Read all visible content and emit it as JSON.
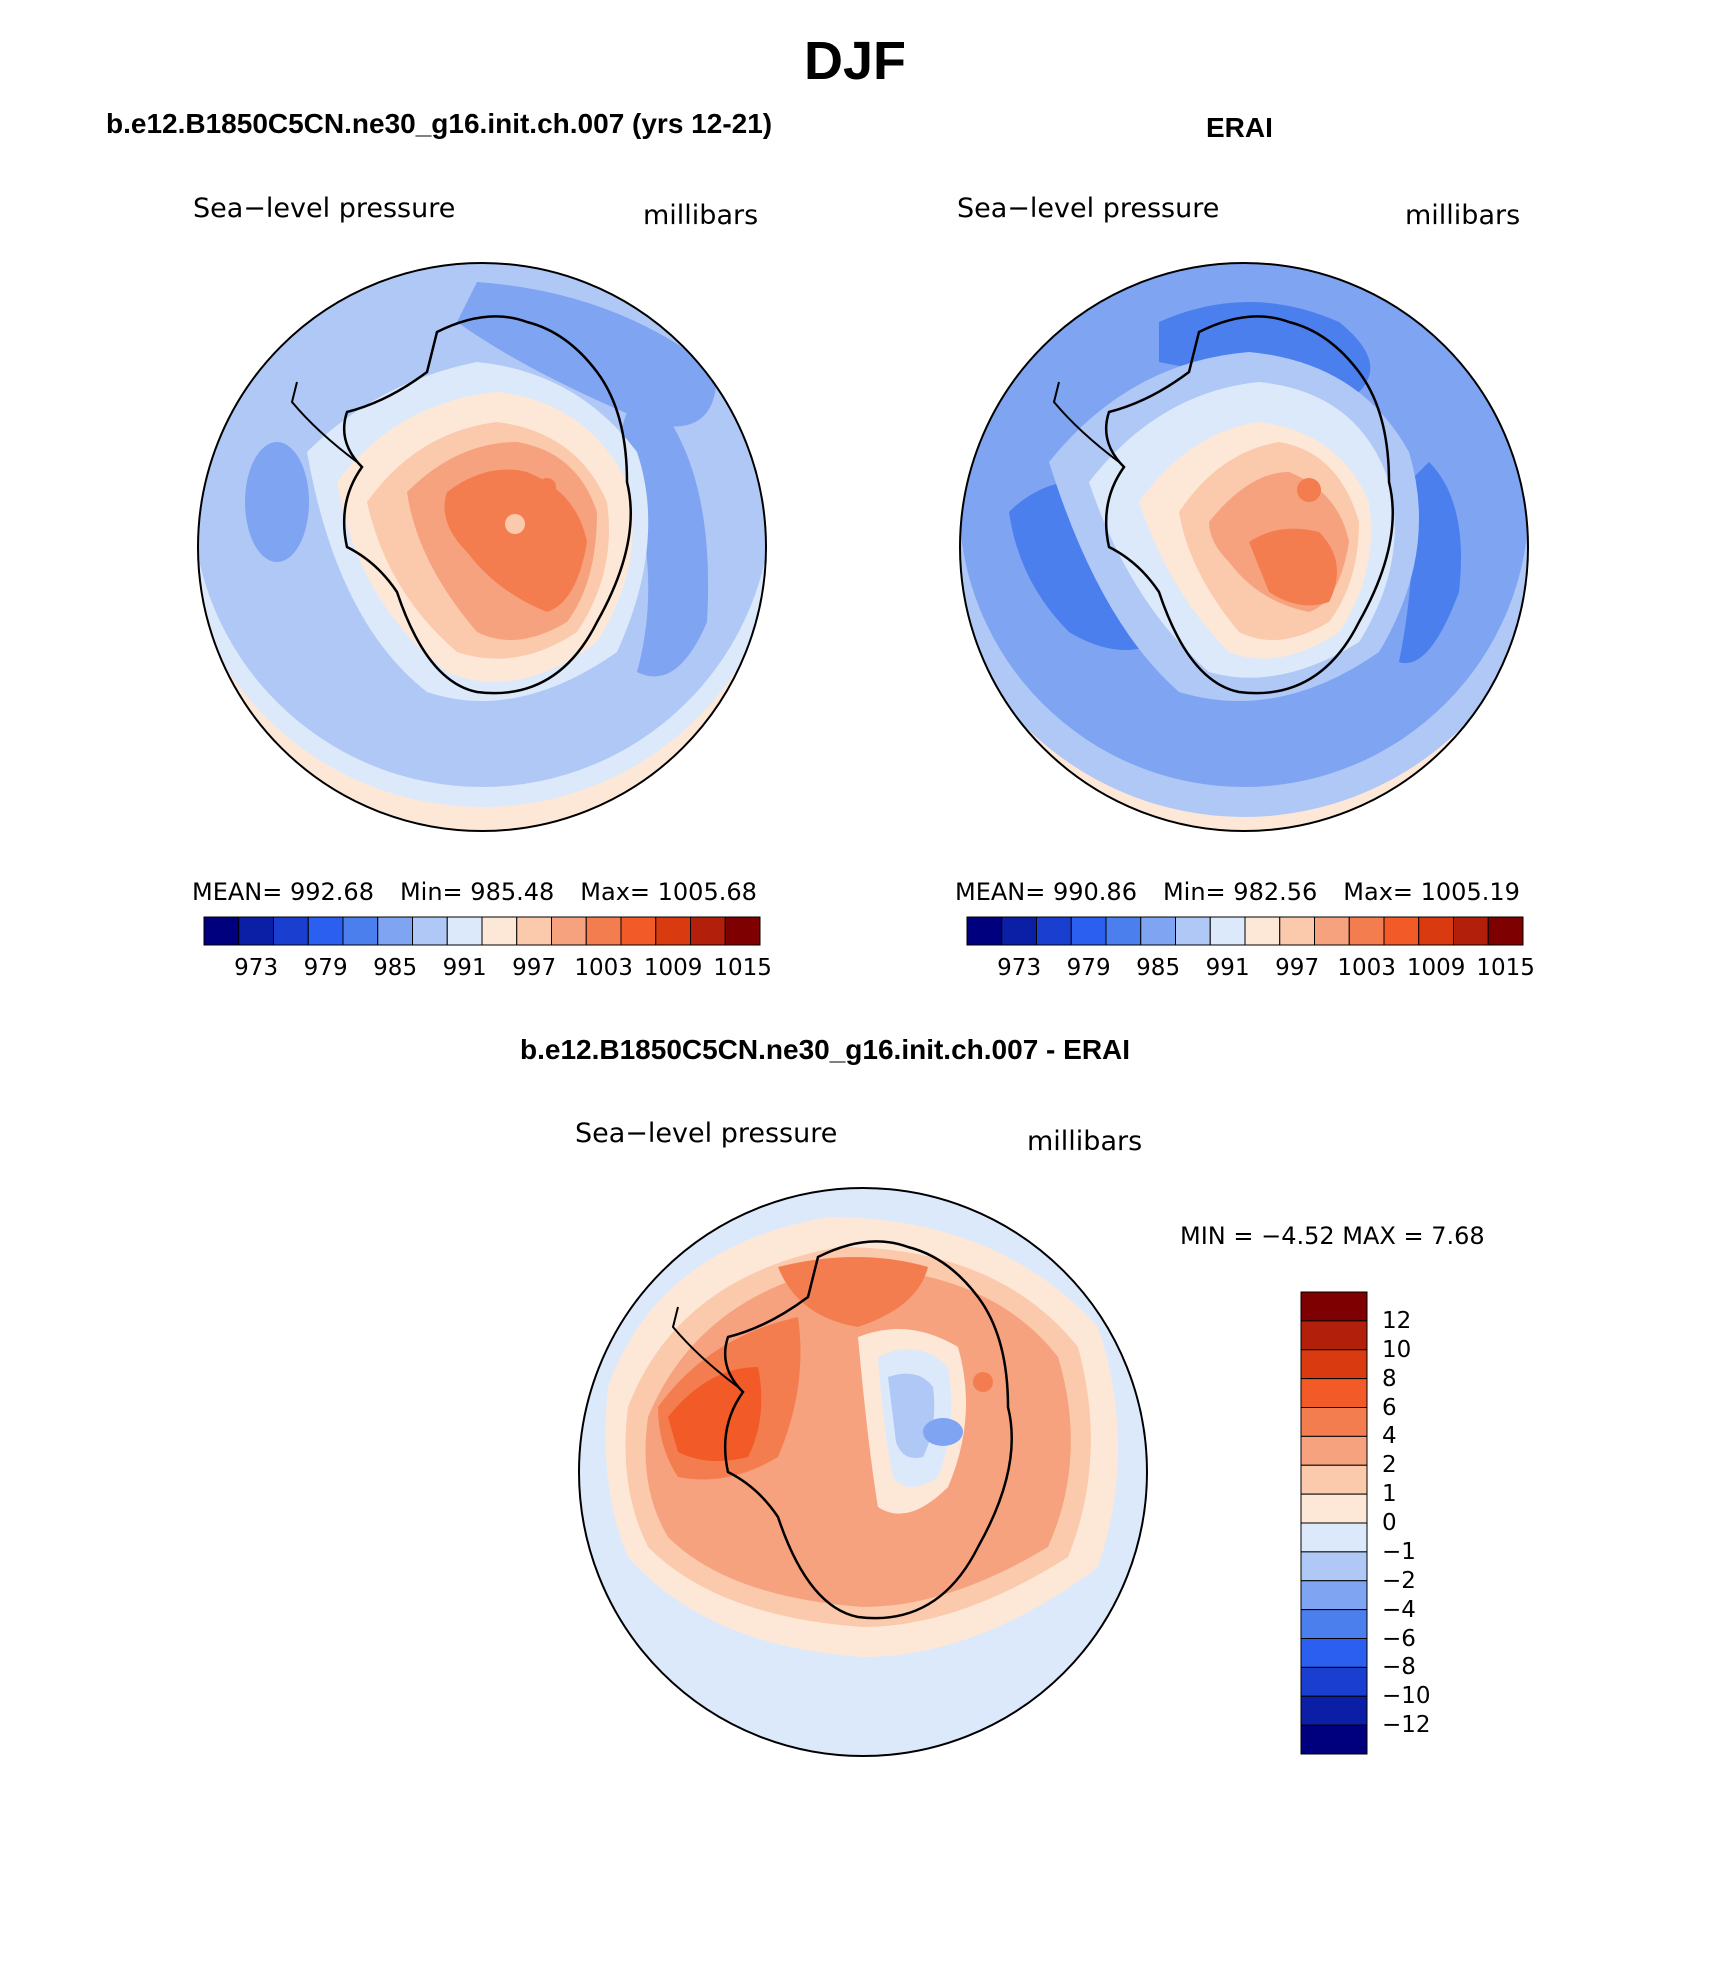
{
  "title": "DJF",
  "panels": [
    {
      "header": "b.e12.B1850C5CN.ne30_g16.init.ch.007 (yrs 12-21)",
      "variable": "Sea−level pressure",
      "units": "millibars",
      "stats": {
        "mean": "MEAN=  992.68",
        "min": "Min=  985.48",
        "max": "Max=  1005.68"
      },
      "colorbar_ticks": [
        "973",
        "979",
        "985",
        "991",
        "997",
        "1003",
        "1009",
        "1015"
      ]
    },
    {
      "header": "ERAI",
      "variable": "Sea−level pressure",
      "units": "millibars",
      "stats": {
        "mean": "MEAN=  990.86",
        "min": "Min=  982.56",
        "max": "Max=  1005.19"
      },
      "colorbar_ticks": [
        "973",
        "979",
        "985",
        "991",
        "997",
        "1003",
        "1009",
        "1015"
      ]
    },
    {
      "header": "b.e12.B1850C5CN.ne30_g16.init.ch.007 - ERAI",
      "variable": "Sea−level pressure",
      "units": "millibars",
      "minmax": "MIN =    −4.52  MAX =     7.68",
      "colorbar_ticks": [
        "12",
        "10",
        "8",
        "6",
        "4",
        "2",
        "1",
        "0",
        "−1",
        "−2",
        "−4",
        "−6",
        "−8",
        "−10",
        "−12"
      ]
    }
  ],
  "colors": {
    "abs_scale": [
      "#00007f",
      "#0a1fa6",
      "#1a3ed0",
      "#2a5ff0",
      "#4b7fee",
      "#7ea4f2",
      "#b0c8f6",
      "#dce9fb",
      "#fde8d8",
      "#fbc9ac",
      "#f6a27f",
      "#f47d4f",
      "#f25a28",
      "#d93a10",
      "#b21f0a",
      "#7f0000"
    ],
    "diff_scale": [
      "#7f0000",
      "#b21f0a",
      "#d93a10",
      "#f25a28",
      "#f47d4f",
      "#f6a27f",
      "#fbc9ac",
      "#fde8d8",
      "#dce9fb",
      "#b0c8f6",
      "#7ea4f2",
      "#4b7fee",
      "#2a5ff0",
      "#1a3ed0",
      "#0a1fa6",
      "#00007f"
    ]
  }
}
